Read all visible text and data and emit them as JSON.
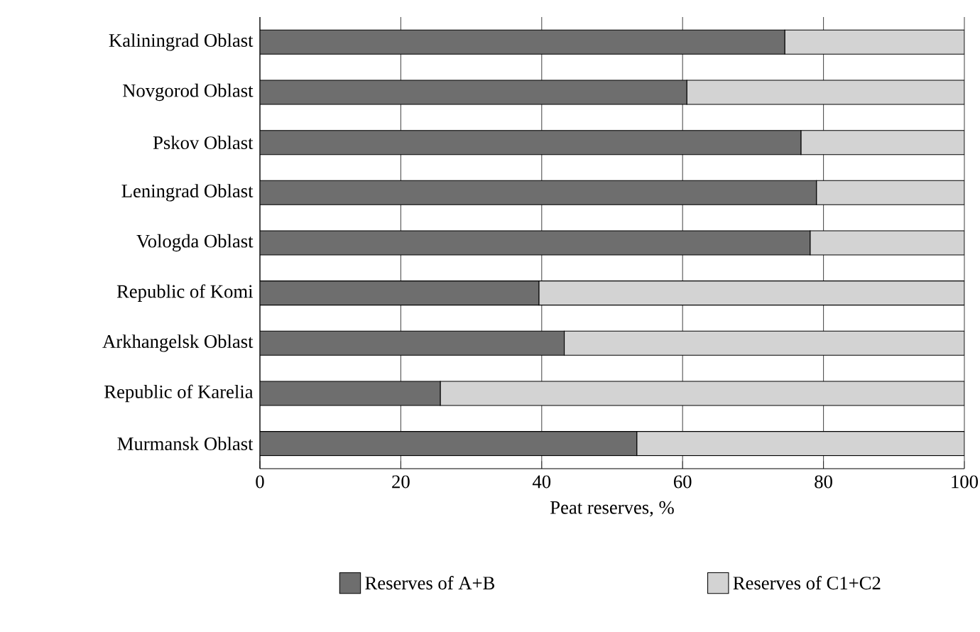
{
  "chart_data": {
    "type": "bar",
    "orientation": "horizontal",
    "stacked": true,
    "xlabel": "Peat reserves, %",
    "categories": [
      "Kaliningrad Oblast",
      "Novgorod Oblast",
      "Pskov Oblast",
      "Leningrad Oblast",
      "Vologda Oblast",
      "Republic of Komi",
      "Arkhangelsk Oblast",
      "Republic of Karelia",
      "Murmansk Oblast"
    ],
    "series": [
      {
        "name": "Reserves of A+B",
        "color": "#6e6e6e",
        "values": [
          74.5,
          60.6,
          76.8,
          79.0,
          78.1,
          39.6,
          43.2,
          25.6,
          53.5
        ]
      },
      {
        "name": "Reserves of C1+C2",
        "color": "#d3d3d3",
        "values": [
          25.5,
          39.4,
          23.2,
          21.0,
          21.9,
          60.4,
          56.8,
          74.4,
          46.5
        ]
      }
    ],
    "xlim": [
      0,
      100
    ],
    "xticks": [
      0,
      20,
      40,
      60,
      80,
      100
    ],
    "grid": "x",
    "legend": "bottom"
  }
}
